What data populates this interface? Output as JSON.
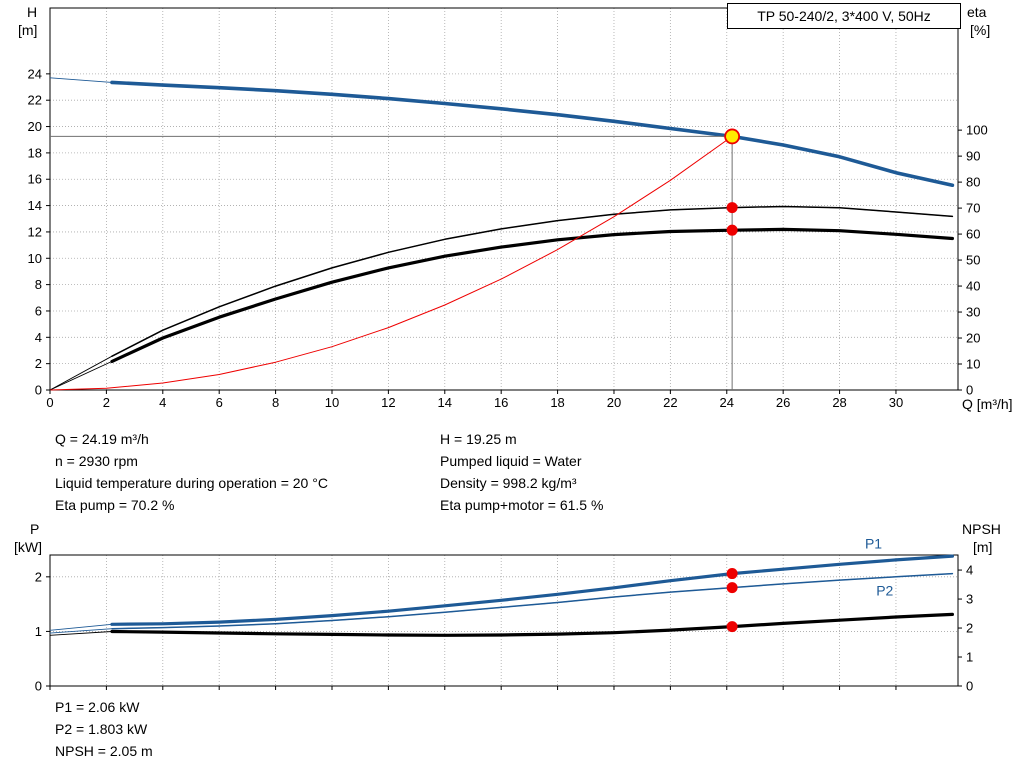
{
  "title_box": {
    "label": "TP 50-240/2, 3*400 V, 50Hz"
  },
  "info_top": {
    "left": [
      "Q = 24.19 m³/h",
      "n = 2930 rpm",
      "Liquid temperature during operation = 20 °C",
      "Eta pump = 70.2 %"
    ],
    "right": [
      "H = 19.25 m",
      "Pumped liquid = Water",
      "Density = 998.2 kg/m³",
      "Eta pump+motor = 61.5 %"
    ]
  },
  "info_bottom": [
    "P1 = 2.06 kW",
    "P2 = 1.803 kW",
    "NPSH = 2.05 m"
  ],
  "colors": {
    "curve_blue": "#1e5a96",
    "curve_black": "#000000",
    "curve_red": "#ee0000",
    "marker_red": "#ee0000",
    "marker_yellow": "#ffec00",
    "grid": "#a8a8a8",
    "axis": "#000000",
    "crosshair": "#707070",
    "label_blue": "#1e5a96"
  },
  "chart_data": [
    {
      "type": "line",
      "name": "head-capacity-and-efficiency",
      "x_axis": {
        "label": "Q [m³/h]",
        "min": 0,
        "max": 32.2,
        "ticks": [
          0,
          2,
          4,
          6,
          8,
          10,
          12,
          14,
          16,
          18,
          20,
          22,
          24,
          26,
          28,
          30
        ],
        "show_tick_labels": true
      },
      "y_left": {
        "label_line1": "H",
        "label_line2": "[m]",
        "min": 0,
        "max": 29,
        "ticks": [
          0,
          2,
          4,
          6,
          8,
          10,
          12,
          14,
          16,
          18,
          20,
          22,
          24
        ]
      },
      "y_right": {
        "label_line1": "eta",
        "label_line2": "[%]",
        "min": 0,
        "max": 147,
        "ticks": [
          0,
          10,
          20,
          30,
          40,
          50,
          60,
          70,
          80,
          90,
          100
        ]
      },
      "series": [
        {
          "name": "head-curve",
          "color": "curve_blue",
          "width": 3.6,
          "axis": "left",
          "thin_until": 2.2,
          "points": [
            [
              0,
              23.7
            ],
            [
              2.2,
              23.35
            ],
            [
              4,
              23.15
            ],
            [
              6,
              22.95
            ],
            [
              8,
              22.72
            ],
            [
              10,
              22.45
            ],
            [
              12,
              22.12
            ],
            [
              14,
              21.75
            ],
            [
              16,
              21.35
            ],
            [
              18,
              20.9
            ],
            [
              20,
              20.4
            ],
            [
              22,
              19.85
            ],
            [
              24.19,
              19.25
            ],
            [
              26,
              18.6
            ],
            [
              28,
              17.7
            ],
            [
              30,
              16.5
            ],
            [
              32,
              15.55
            ]
          ]
        },
        {
          "name": "eta-pump-curve",
          "color": "curve_black",
          "width": 1.5,
          "axis": "right",
          "thin_until": 2.2,
          "points": [
            [
              0,
              0
            ],
            [
              2.2,
              13
            ],
            [
              4,
              23
            ],
            [
              6,
              32
            ],
            [
              8,
              40
            ],
            [
              10,
              47
            ],
            [
              12,
              53
            ],
            [
              14,
              58
            ],
            [
              16,
              62
            ],
            [
              18,
              65.2
            ],
            [
              20,
              67.6
            ],
            [
              22,
              69.3
            ],
            [
              24.19,
              70.2
            ],
            [
              26,
              70.6
            ],
            [
              28,
              70.1
            ],
            [
              30,
              68.5
            ],
            [
              32,
              66.8
            ]
          ]
        },
        {
          "name": "eta-pump-motor-curve",
          "color": "curve_black",
          "width": 3.2,
          "axis": "right",
          "thin_until": 2.2,
          "points": [
            [
              0,
              0
            ],
            [
              2.2,
              11
            ],
            [
              4,
              20
            ],
            [
              6,
              28
            ],
            [
              8,
              35
            ],
            [
              10,
              41.5
            ],
            [
              12,
              47
            ],
            [
              14,
              51.5
            ],
            [
              16,
              55
            ],
            [
              18,
              57.8
            ],
            [
              20,
              59.8
            ],
            [
              22,
              61.0
            ],
            [
              24.19,
              61.5
            ],
            [
              26,
              61.8
            ],
            [
              28,
              61.3
            ],
            [
              30,
              59.9
            ],
            [
              32,
              58.3
            ]
          ]
        },
        {
          "name": "system-resistance-curve",
          "color": "curve_red",
          "width": 1.0,
          "axis": "left",
          "thin_until": null,
          "points": [
            [
              0,
              0
            ],
            [
              2,
              0.13
            ],
            [
              4,
              0.53
            ],
            [
              6,
              1.18
            ],
            [
              8,
              2.11
            ],
            [
              10,
              3.29
            ],
            [
              12,
              4.74
            ],
            [
              14,
              6.45
            ],
            [
              16,
              8.42
            ],
            [
              18,
              10.66
            ],
            [
              20,
              13.16
            ],
            [
              22,
              15.92
            ],
            [
              24.19,
              19.25
            ]
          ]
        }
      ],
      "crosshair": {
        "x": 24.19,
        "y": 19.25
      },
      "markers": [
        {
          "x": 24.19,
          "y": 19.25,
          "axis": "left",
          "style": "duty"
        },
        {
          "x": 24.19,
          "y": 70.2,
          "axis": "right",
          "style": "dot"
        },
        {
          "x": 24.19,
          "y": 61.5,
          "axis": "right",
          "style": "dot"
        }
      ],
      "annotations": []
    },
    {
      "type": "line",
      "name": "power-and-npsh",
      "x_axis": {
        "label": "",
        "min": 0,
        "max": 32.2,
        "ticks": [
          0,
          2,
          4,
          6,
          8,
          10,
          12,
          14,
          16,
          18,
          20,
          22,
          24,
          26,
          28,
          30
        ],
        "show_tick_labels": false
      },
      "y_left": {
        "label_line1": "P",
        "label_line2": "[kW]",
        "min": 0,
        "max": 2.4,
        "ticks": [
          0,
          1,
          2
        ]
      },
      "y_right": {
        "label_line1": "NPSH",
        "label_line2": "[m]",
        "min": 0,
        "max": 4.52,
        "ticks": [
          0,
          1,
          2,
          3,
          4
        ]
      },
      "series": [
        {
          "name": "p1-curve",
          "color": "curve_blue",
          "width": 3.2,
          "axis": "left",
          "thin_until": 2.2,
          "points": [
            [
              0,
              1.02
            ],
            [
              2.2,
              1.13
            ],
            [
              4,
              1.14
            ],
            [
              6,
              1.17
            ],
            [
              8,
              1.22
            ],
            [
              10,
              1.29
            ],
            [
              12,
              1.37
            ],
            [
              14,
              1.47
            ],
            [
              16,
              1.57
            ],
            [
              18,
              1.68
            ],
            [
              20,
              1.8
            ],
            [
              22,
              1.93
            ],
            [
              24.19,
              2.06
            ],
            [
              26,
              2.14
            ],
            [
              28,
              2.23
            ],
            [
              30,
              2.31
            ],
            [
              32,
              2.38
            ]
          ]
        },
        {
          "name": "p2-curve",
          "color": "curve_blue",
          "width": 1.5,
          "axis": "left",
          "thin_until": 2.2,
          "points": [
            [
              0,
              0.97
            ],
            [
              2.2,
              1.05
            ],
            [
              4,
              1.07
            ],
            [
              6,
              1.1
            ],
            [
              8,
              1.14
            ],
            [
              10,
              1.2
            ],
            [
              12,
              1.27
            ],
            [
              14,
              1.35
            ],
            [
              16,
              1.44
            ],
            [
              18,
              1.53
            ],
            [
              20,
              1.63
            ],
            [
              22,
              1.72
            ],
            [
              24.19,
              1.803
            ],
            [
              26,
              1.87
            ],
            [
              28,
              1.94
            ],
            [
              30,
              2.0
            ],
            [
              32,
              2.06
            ]
          ]
        },
        {
          "name": "npsh-curve",
          "color": "curve_black",
          "width": 3.2,
          "axis": "right",
          "thin_until": 2.2,
          "points": [
            [
              0,
              1.75
            ],
            [
              2.2,
              1.88
            ],
            [
              4,
              1.86
            ],
            [
              6,
              1.83
            ],
            [
              8,
              1.8
            ],
            [
              10,
              1.78
            ],
            [
              12,
              1.76
            ],
            [
              14,
              1.75
            ],
            [
              16,
              1.76
            ],
            [
              18,
              1.79
            ],
            [
              20,
              1.84
            ],
            [
              22,
              1.93
            ],
            [
              24.19,
              2.05
            ],
            [
              26,
              2.16
            ],
            [
              28,
              2.27
            ],
            [
              30,
              2.38
            ],
            [
              32,
              2.47
            ]
          ]
        }
      ],
      "crosshair": null,
      "markers": [
        {
          "x": 24.19,
          "y": 2.06,
          "axis": "left",
          "style": "dot"
        },
        {
          "x": 24.19,
          "y": 1.803,
          "axis": "left",
          "style": "dot"
        },
        {
          "x": 24.19,
          "y": 2.05,
          "axis": "right",
          "style": "dot"
        }
      ],
      "annotations": [
        {
          "text": "P1",
          "x": 28.9,
          "y": 2.52,
          "axis": "left",
          "color": "label_blue"
        },
        {
          "text": "P2",
          "x": 29.3,
          "y": 1.66,
          "axis": "left",
          "color": "label_blue"
        }
      ]
    }
  ]
}
